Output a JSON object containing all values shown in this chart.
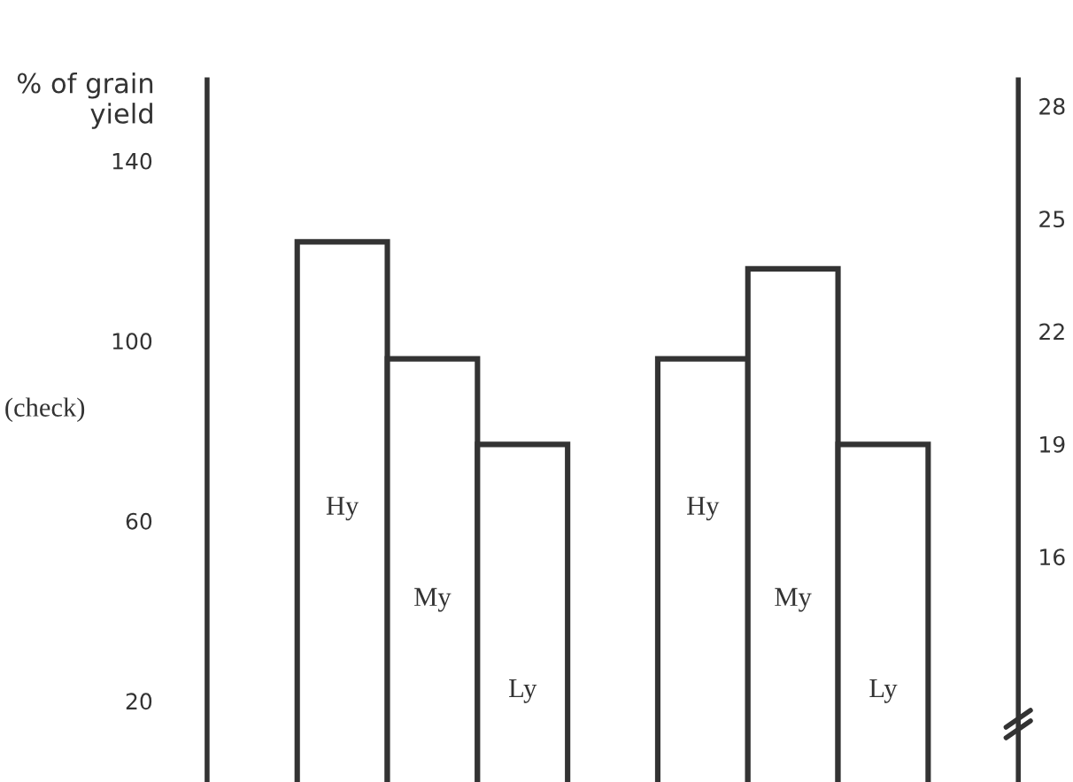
{
  "chart_data": {
    "type": "bar",
    "ylabel": "% of grain\nyield",
    "categories": [
      "Hy",
      "My",
      "Ly",
      null,
      "Hy",
      "My",
      "Ly"
    ],
    "values": [
      122,
      96,
      77,
      null,
      96,
      116,
      77
    ],
    "color": "#ffffff",
    "ylim": [
      2,
      158
    ],
    "yticks": [
      20,
      60,
      100,
      140
    ],
    "y2lim": [
      10,
      28.7
    ],
    "y2ticks": [
      16,
      19,
      22,
      25,
      28
    ],
    "annotations": [
      "(check)"
    ],
    "grid": false,
    "legend": false
  }
}
